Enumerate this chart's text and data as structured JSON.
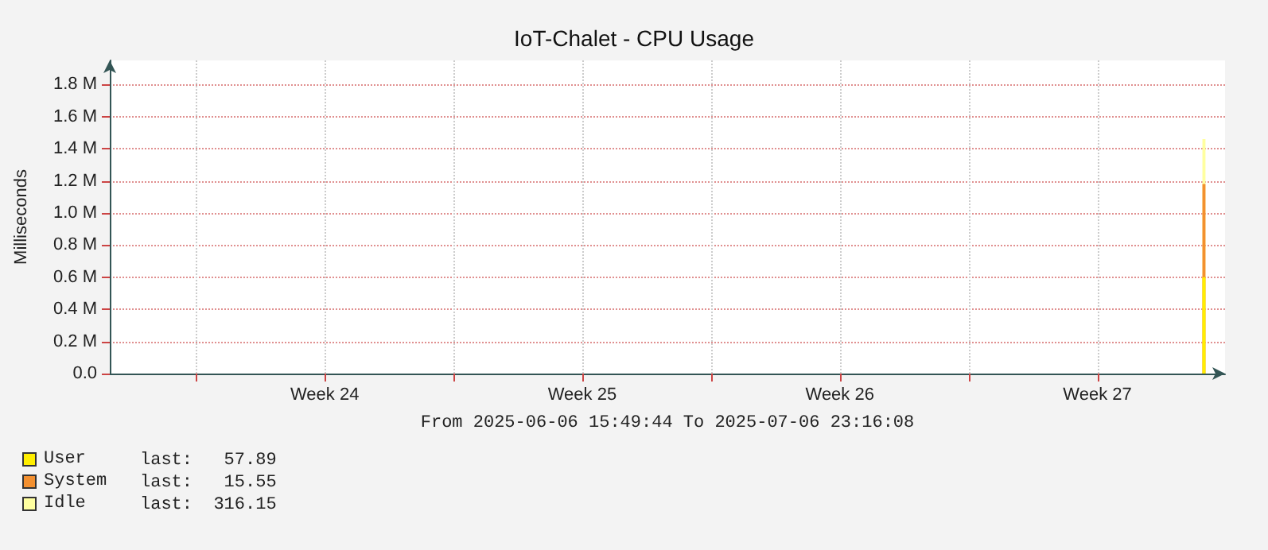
{
  "chart_data": {
    "type": "area",
    "title": "IoT-Chalet - CPU Usage",
    "xlabel": "From 2025-06-06 15:49:44 To 2025-07-06 23:16:08",
    "ylabel": "Milliseconds",
    "stacked": true,
    "x": [
      "2025-07-06T08:30",
      "2025-07-06T10:30"
    ],
    "series": [
      {
        "name": "User",
        "color": "#ffee00",
        "values": [
          600000,
          600000
        ]
      },
      {
        "name": "System",
        "color": "#f39030",
        "values": [
          580000,
          580000
        ]
      },
      {
        "name": "Idle",
        "color": "#ffffa0",
        "values": [
          280000,
          280000
        ]
      }
    ],
    "xlim": [
      "2025-06-06T15:49",
      "2025-07-06T23:16"
    ],
    "xticks": [
      {
        "value": "2025-06-09",
        "label": null
      },
      {
        "value": "2025-06-12T12:00",
        "label": "Week 24"
      },
      {
        "value": "2025-06-16",
        "label": null
      },
      {
        "value": "2025-06-19T12:00",
        "label": "Week 25"
      },
      {
        "value": "2025-06-23",
        "label": null
      },
      {
        "value": "2025-06-26T12:00",
        "label": "Week 26"
      },
      {
        "value": "2025-06-30",
        "label": null
      },
      {
        "value": "2025-07-03T12:00",
        "label": "Week 27"
      }
    ],
    "ylim": [
      0,
      1950000
    ],
    "yticks": [
      {
        "value": 0,
        "label": "0.0"
      },
      {
        "value": 200000,
        "label": "0.2 M"
      },
      {
        "value": 400000,
        "label": "0.4 M"
      },
      {
        "value": 600000,
        "label": "0.6 M"
      },
      {
        "value": 800000,
        "label": "0.8 M"
      },
      {
        "value": 1000000,
        "label": "1.0 M"
      },
      {
        "value": 1200000,
        "label": "1.2 M"
      },
      {
        "value": 1400000,
        "label": "1.4 M"
      },
      {
        "value": 1600000,
        "label": "1.6 M"
      },
      {
        "value": 1800000,
        "label": "1.8 M"
      }
    ],
    "grid": true,
    "legend": "bottom left",
    "annotations": [
      "last:   57.89",
      "last:   15.55",
      "last:  316.15"
    ]
  }
}
